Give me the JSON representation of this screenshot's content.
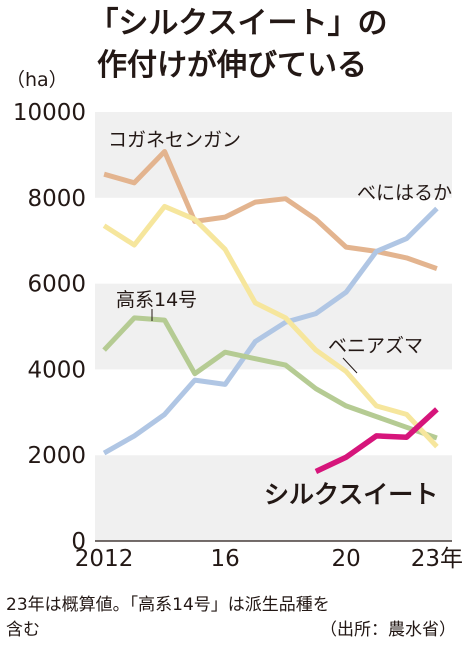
{
  "chart_data": {
    "type": "line",
    "title_lines": [
      "「シルクスイート」の",
      "作付けが伸びている"
    ],
    "unit_label": "（ha）",
    "x": [
      2012,
      2013,
      2014,
      2015,
      2016,
      2017,
      2018,
      2019,
      2020,
      2021,
      2022,
      2023
    ],
    "x_tick_values": [
      2012,
      2016,
      2020,
      2023
    ],
    "x_tick_labels": [
      "2012",
      "16",
      "20",
      "23年"
    ],
    "y_ticks": [
      0,
      2000,
      4000,
      6000,
      8000,
      10000
    ],
    "y_tick_labels": [
      "0",
      "2000",
      "4000",
      "6000",
      "8000",
      "10000"
    ],
    "ylim": [
      0,
      10000
    ],
    "xlim": [
      2011.7,
      2023.5
    ],
    "grid": "alternating horizontal bands",
    "series": [
      {
        "name": "コガネセンガン",
        "color": "#e3b48f",
        "width": 5,
        "values": [
          8550,
          8350,
          9080,
          7450,
          7550,
          7900,
          7980,
          7500,
          6850,
          6750,
          6600,
          6350
        ]
      },
      {
        "name": "べにはるか",
        "color": "#b0c6e4",
        "width": 5,
        "values": [
          2050,
          2450,
          2950,
          3750,
          3650,
          4650,
          5100,
          5300,
          5800,
          6750,
          7050,
          7750
        ]
      },
      {
        "name": "高系14号",
        "color": "#b5cb93",
        "width": 5,
        "values": [
          4450,
          5200,
          5150,
          3900,
          4400,
          4250,
          4100,
          3550,
          3150,
          2900,
          2650,
          2400
        ]
      },
      {
        "name": "ベニアズマ",
        "color": "#f6e69d",
        "width": 5,
        "values": [
          7350,
          6900,
          7800,
          7500,
          6800,
          5550,
          5200,
          4450,
          3950,
          3150,
          2950,
          2200
        ]
      },
      {
        "name": "シルクスイート",
        "color": "#d6157b",
        "width": 5.5,
        "values": [
          null,
          null,
          null,
          null,
          null,
          null,
          null,
          1620,
          1950,
          2450,
          2420,
          3070
        ]
      }
    ],
    "series_labels": [
      "コガネセンガン",
      "べにはるか",
      "高系14号",
      "ベニアズマ",
      "シルクスイート"
    ],
    "footnote_lines": [
      "23年は概算値。「高系14号」は派生品種を",
      "含む"
    ],
    "source": "（出所：農水省）"
  }
}
